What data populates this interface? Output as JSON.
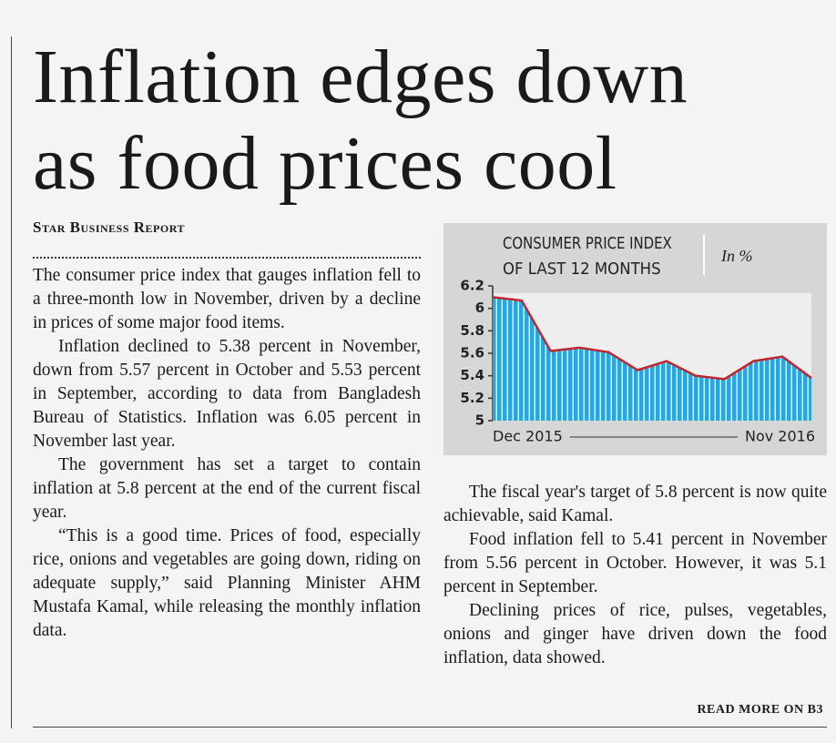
{
  "headline": [
    "Inflation edges down",
    "as food prices cool"
  ],
  "byline": "Star Business Report",
  "left_column": [
    "The consumer price index that gauges inflation fell to a three-month low in November, driven by a decline in prices of some major food items.",
    "Inflation declined to 5.38 percent in November, down from 5.57 percent in October and 5.53 percent in September, according to data from Bangladesh Bureau of Statistics. Inflation was 6.05 percent in November last year.",
    "The government has set a target to contain inflation at 5.8 percent at the end of the current fiscal year.",
    "“This is a good time. Prices of food, especially rice, onions and vegetables are going down, riding on adequate supply,” said Planning Minister AHM Mustafa Kamal, while releasing the monthly inflation data."
  ],
  "right_column": [
    "The fiscal year's target of 5.8 percent is now quite achievable, said Kamal.",
    "Food inflation fell to 5.41 percent in November from 5.56 percent in October. However, it was 5.1 percent in September.",
    "Declining prices of rice, pulses, vegetables, onions and ginger have driven down the food inflation, data showed."
  ],
  "read_more": "READ MORE ON B3",
  "chart_data": {
    "type": "area",
    "title": [
      "CONSUMER PRICE INDEX",
      "OF LAST 12 MONTHS"
    ],
    "subtitle": "In %",
    "categories": [
      "Dec 2015",
      null,
      null,
      null,
      null,
      null,
      null,
      null,
      null,
      null,
      null,
      "Nov 2016"
    ],
    "values": [
      6.1,
      6.07,
      5.62,
      5.65,
      5.61,
      5.45,
      5.53,
      5.4,
      5.37,
      5.53,
      5.57,
      5.38
    ],
    "color": "#2aa6dd",
    "line_color": "#c0272d",
    "ylim": [
      5,
      6.2
    ],
    "yticks": [
      5,
      5.2,
      5.4,
      5.6,
      5.8,
      6,
      6.2
    ]
  }
}
